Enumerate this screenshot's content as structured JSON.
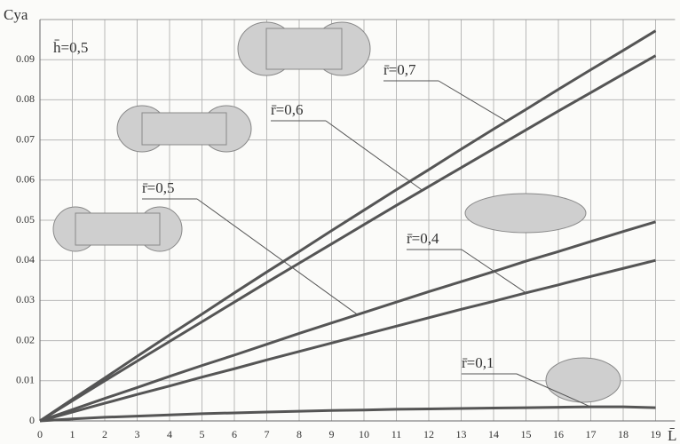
{
  "chart_data": {
    "type": "line",
    "y_label": "Cya",
    "x_label": "L̄",
    "annotation": "h̄=0,5",
    "x": [
      0,
      1,
      2,
      3,
      4,
      5,
      6,
      7,
      8,
      9,
      10,
      11,
      12,
      13,
      14,
      15,
      16,
      17,
      18,
      19
    ],
    "series": [
      {
        "name": "r̄=0,7",
        "color": "#555555",
        "values": [
          0,
          0.0054,
          0.0107,
          0.0161,
          0.0214,
          0.0266,
          0.0319,
          0.0371,
          0.0422,
          0.0474,
          0.0525,
          0.0576,
          0.0626,
          0.0677,
          0.0727,
          0.0776,
          0.0826,
          0.0875,
          0.0923,
          0.0972
        ]
      },
      {
        "name": "r̄=0,6",
        "color": "#555555",
        "values": [
          0,
          0.005,
          0.01,
          0.0149,
          0.0198,
          0.0247,
          0.0296,
          0.0345,
          0.0393,
          0.0441,
          0.0489,
          0.0537,
          0.0584,
          0.0631,
          0.0678,
          0.0725,
          0.0772,
          0.0818,
          0.0864,
          0.091
        ]
      },
      {
        "name": "r̄=0,5",
        "color": "#555555",
        "values": [
          0,
          0.0028,
          0.0056,
          0.0083,
          0.0111,
          0.0138,
          0.0164,
          0.0191,
          0.0218,
          0.0244,
          0.027,
          0.0296,
          0.0322,
          0.0347,
          0.0372,
          0.0398,
          0.0422,
          0.0447,
          0.0472,
          0.0496
        ]
      },
      {
        "name": "r̄=0,4",
        "color": "#555555",
        "values": [
          0,
          0.0022,
          0.0044,
          0.0066,
          0.0087,
          0.0109,
          0.013,
          0.0152,
          0.0173,
          0.0194,
          0.0215,
          0.0236,
          0.0257,
          0.0278,
          0.0298,
          0.0319,
          0.0339,
          0.036,
          0.038,
          0.04
        ]
      },
      {
        "name": "r̄=0,1",
        "color": "#555555",
        "values": [
          0,
          0.0005,
          0.0009,
          0.0012,
          0.0015,
          0.0018,
          0.002,
          0.0022,
          0.0024,
          0.0026,
          0.0027,
          0.0029,
          0.003,
          0.0031,
          0.0032,
          0.0033,
          0.0034,
          0.0035,
          0.0035,
          0.0033
        ]
      }
    ],
    "xlim": [
      0,
      19.6
    ],
    "ylim": [
      0,
      0.1
    ],
    "xticks": [
      0,
      1,
      2,
      3,
      4,
      5,
      6,
      7,
      8,
      9,
      10,
      11,
      12,
      13,
      14,
      15,
      16,
      17,
      18,
      19
    ],
    "yticks": [
      0,
      0.01,
      0.02,
      0.03,
      0.04,
      0.05,
      0.06,
      0.07,
      0.08,
      0.09
    ],
    "grid": true
  }
}
